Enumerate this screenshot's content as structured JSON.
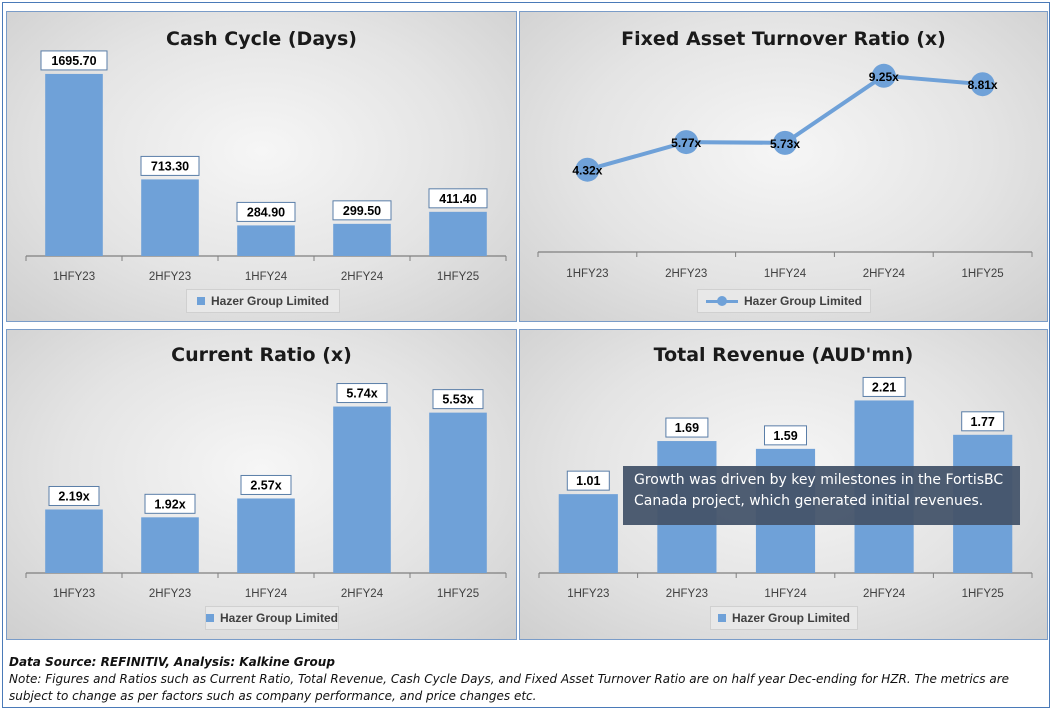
{
  "chart_data": [
    {
      "type": "bar",
      "title": "Cash Cycle (Days)",
      "categories": [
        "1HFY23",
        "2HFY23",
        "1HFY24",
        "2HFY24",
        "1HFY25"
      ],
      "series": [
        {
          "name": "Hazer Group Limited",
          "values": [
            1695.7,
            713.3,
            284.9,
            299.5,
            411.4
          ]
        }
      ],
      "labels": [
        "1695.70",
        "713.30",
        "284.90",
        "299.50",
        "411.40"
      ],
      "ylim": [
        0,
        1900
      ],
      "grid": false,
      "legend": "bottom"
    },
    {
      "type": "line",
      "title": "Fixed Asset Turnover Ratio (x)",
      "categories": [
        "1HFY23",
        "2HFY23",
        "1HFY24",
        "2HFY24",
        "1HFY25"
      ],
      "series": [
        {
          "name": "Hazer Group Limited",
          "values": [
            4.32,
            5.77,
            5.73,
            9.25,
            8.81
          ]
        }
      ],
      "labels": [
        "4.32x",
        "5.77x",
        "5.73x",
        "9.25x",
        "8.81x"
      ],
      "ylim": [
        0,
        10.5
      ],
      "grid": false,
      "legend": "bottom"
    },
    {
      "type": "bar",
      "title": "Current Ratio (x)",
      "categories": [
        "1HFY23",
        "2HFY23",
        "1HFY24",
        "2HFY24",
        "1HFY25"
      ],
      "series": [
        {
          "name": "Hazer Group Limited",
          "values": [
            2.19,
            1.92,
            2.57,
            5.74,
            5.53
          ]
        }
      ],
      "labels": [
        "2.19x",
        "1.92x",
        "2.57x",
        "5.74x",
        "5.53x"
      ],
      "ylim": [
        0,
        7
      ],
      "grid": false,
      "legend": "bottom"
    },
    {
      "type": "bar",
      "title": "Total Revenue (AUD'mn)",
      "categories": [
        "1HFY23",
        "2HFY23",
        "1HFY24",
        "2HFY24",
        "1HFY25"
      ],
      "series": [
        {
          "name": "Hazer Group Limited",
          "values": [
            1.01,
            1.69,
            1.59,
            2.21,
            1.77
          ]
        }
      ],
      "labels": [
        "1.01",
        "1.69",
        "1.59",
        "2.21",
        "1.77"
      ],
      "ylim": [
        0,
        2.6
      ],
      "grid": false,
      "legend": "bottom"
    }
  ],
  "annotation": "Growth was driven by key milestones in the FortisBC Canada project, which generated initial revenues.",
  "footer": {
    "source": "Data Source: REFINITIV, Analysis: Kalkine Group",
    "note": "Note: Figures and Ratios such as Current Ratio, Total Revenue, Cash Cycle Days, and Fixed Asset Turnover Ratio are on half year Dec-ending for HZR. The metrics are subject to change as per factors such as company performance, and price changes etc."
  },
  "colors": {
    "series": "#6fa1d8",
    "axis": "#7f7f7f",
    "panel_border": "#7a9cc8"
  }
}
